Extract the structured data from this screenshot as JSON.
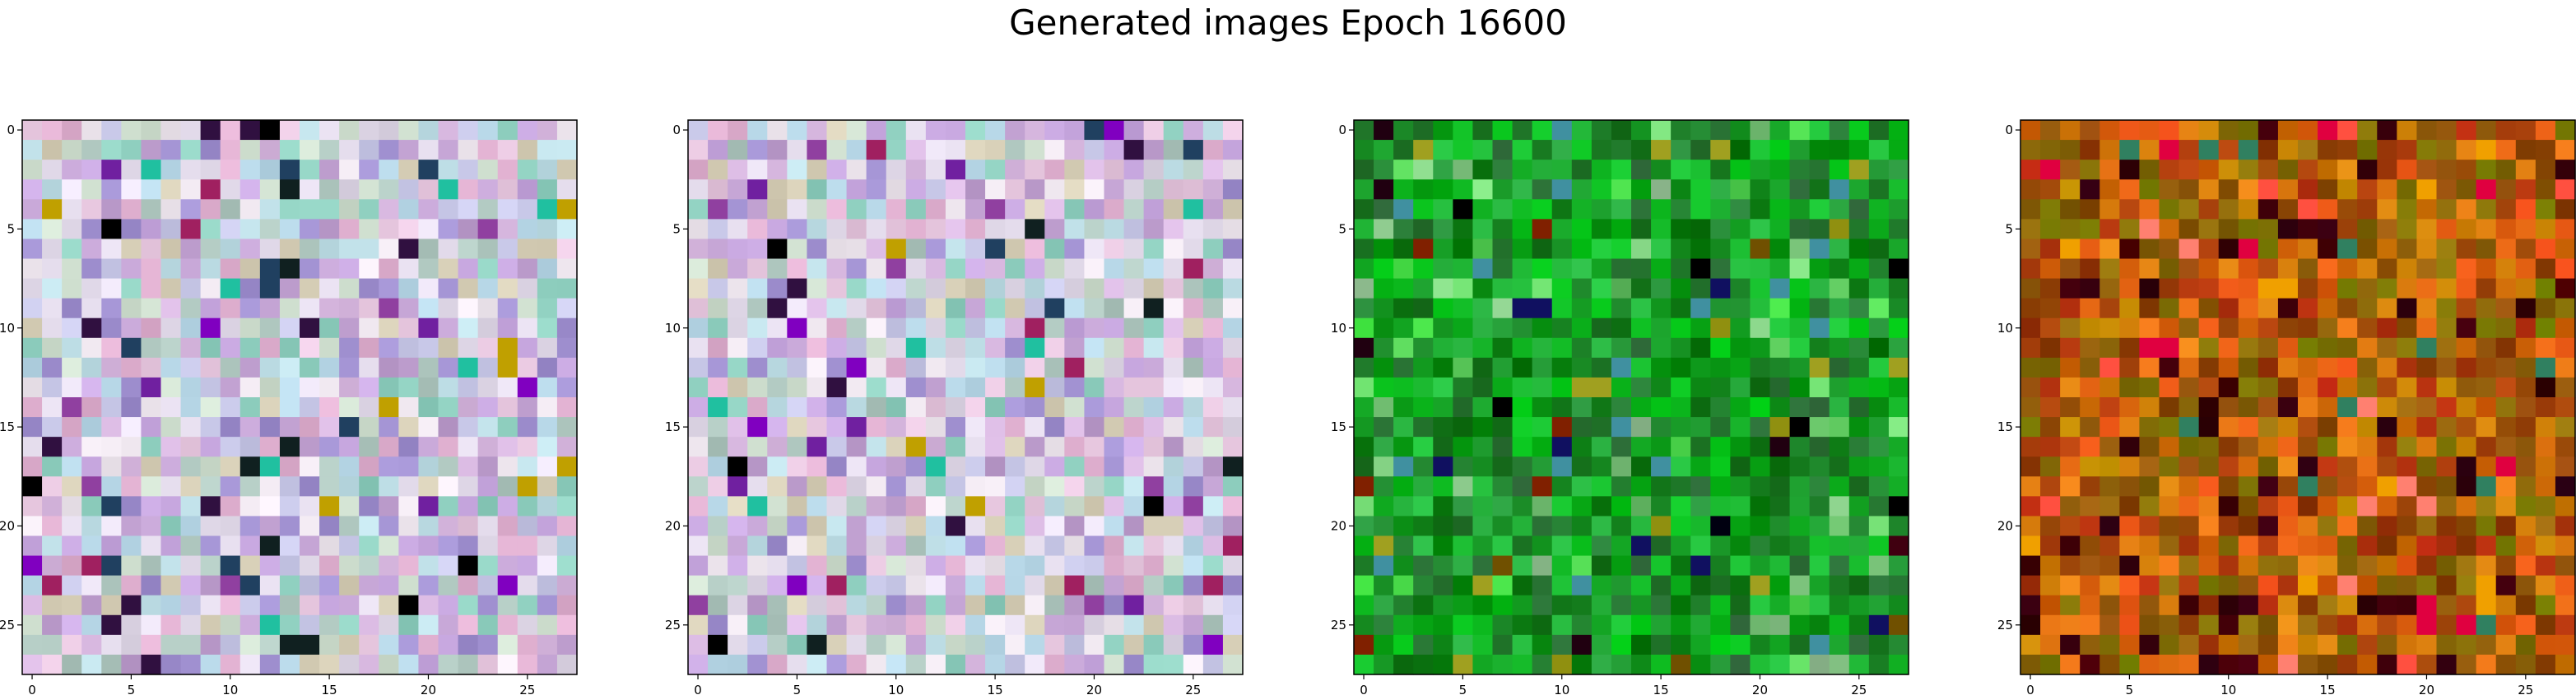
{
  "title": "Generated images Epoch 16600",
  "chart_data": [
    {
      "type": "heatmap",
      "grid_size": 28,
      "palette": "pastel",
      "x_ticks": [
        0,
        5,
        10,
        15,
        20,
        25
      ],
      "y_ticks": [
        0,
        5,
        10,
        15,
        20,
        25
      ],
      "xlim": [
        -0.5,
        27.5
      ],
      "ylim": [
        27.5,
        -0.5
      ],
      "seed": 11
    },
    {
      "type": "heatmap",
      "grid_size": 28,
      "palette": "pastel",
      "x_ticks": [
        0,
        5,
        10,
        15,
        20,
        25
      ],
      "y_ticks": [
        0,
        5,
        10,
        15,
        20,
        25
      ],
      "xlim": [
        -0.5,
        27.5
      ],
      "ylim": [
        27.5,
        -0.5
      ],
      "seed": 23
    },
    {
      "type": "heatmap",
      "grid_size": 28,
      "palette": "green",
      "x_ticks": [
        0,
        5,
        10,
        15,
        20,
        25
      ],
      "y_ticks": [
        0,
        5,
        10,
        15,
        20,
        25
      ],
      "xlim": [
        -0.5,
        27.5
      ],
      "ylim": [
        27.5,
        -0.5
      ],
      "seed": 37
    },
    {
      "type": "heatmap",
      "grid_size": 28,
      "palette": "warm",
      "x_ticks": [
        0,
        5,
        10,
        15,
        20,
        25
      ],
      "y_ticks": [
        0,
        5,
        10,
        15,
        20,
        25
      ],
      "xlim": [
        -0.5,
        27.5
      ],
      "ylim": [
        27.5,
        -0.5
      ],
      "seed": 53
    }
  ]
}
